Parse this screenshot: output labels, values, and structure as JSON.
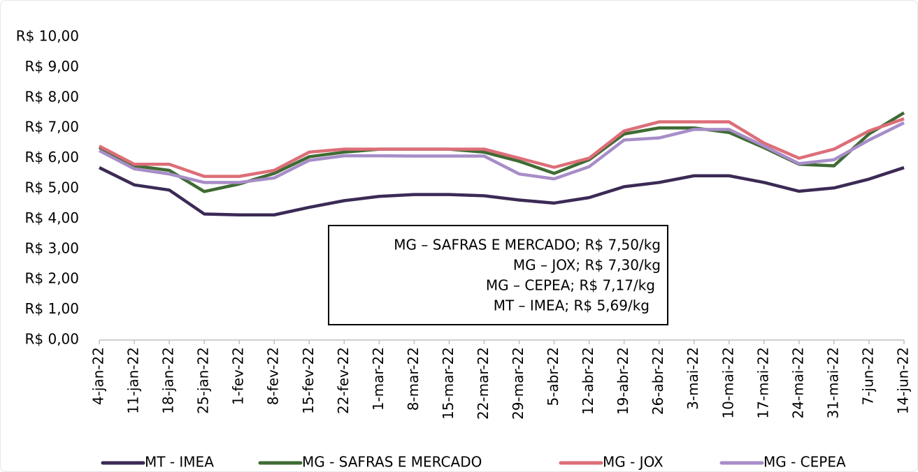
{
  "chart_data": {
    "type": "line",
    "categories": [
      "4-jan-22",
      "11-jan-22",
      "18-jan-22",
      "25-jan-22",
      "1-fev-22",
      "8-fev-22",
      "15-fev-22",
      "22-fev-22",
      "1-mar-22",
      "8-mar-22",
      "15-mar-22",
      "22-mar-22",
      "29-mar-22",
      "5-abr-22",
      "12-abr-22",
      "19-abr-22",
      "26-abr-22",
      "3-mai-22",
      "10-mai-22",
      "17-mai-22",
      "24-mai-22",
      "31-mai-22",
      "7-jun-22",
      "14-jun-22"
    ],
    "series": [
      {
        "name": "MT - IMEA",
        "color": "#3b2a55",
        "values": [
          5.69,
          5.12,
          4.95,
          4.16,
          4.13,
          4.13,
          4.38,
          4.6,
          4.74,
          4.8,
          4.8,
          4.76,
          4.62,
          4.52,
          4.7,
          5.06,
          5.2,
          5.42,
          5.42,
          5.2,
          4.91,
          5.02,
          5.31,
          5.69
        ]
      },
      {
        "name": "MG - SAFRAS E MERCADO",
        "color": "#3f6b34",
        "values": [
          6.35,
          5.75,
          5.6,
          4.9,
          5.15,
          5.5,
          6.05,
          6.2,
          6.3,
          6.3,
          6.3,
          6.2,
          5.9,
          5.5,
          5.95,
          6.8,
          7.0,
          7.0,
          6.85,
          6.35,
          5.8,
          5.75,
          6.8,
          7.5
        ]
      },
      {
        "name": "MG - JOX",
        "color": "#dc6e78",
        "values": [
          6.4,
          5.8,
          5.8,
          5.4,
          5.4,
          5.6,
          6.2,
          6.3,
          6.3,
          6.3,
          6.3,
          6.3,
          6.0,
          5.7,
          6.0,
          6.9,
          7.2,
          7.2,
          7.2,
          6.5,
          6.0,
          6.3,
          6.9,
          7.3
        ]
      },
      {
        "name": "MG - CEPEA",
        "color": "#a88dc8",
        "values": [
          6.25,
          5.65,
          5.48,
          5.2,
          5.2,
          5.35,
          5.93,
          6.08,
          6.08,
          6.07,
          6.07,
          6.07,
          5.48,
          5.32,
          5.72,
          6.6,
          6.67,
          6.95,
          6.95,
          6.4,
          5.82,
          5.95,
          6.6,
          7.17
        ]
      }
    ],
    "ylim": [
      0,
      10
    ],
    "yticks": [
      {
        "value": 0,
        "label": "R$ 0,00"
      },
      {
        "value": 1,
        "label": "R$ 1,00"
      },
      {
        "value": 2,
        "label": "R$ 2,00"
      },
      {
        "value": 3,
        "label": "R$ 3,00"
      },
      {
        "value": 4,
        "label": "R$ 4,00"
      },
      {
        "value": 5,
        "label": "R$ 5,00"
      },
      {
        "value": 6,
        "label": "R$ 6,00"
      },
      {
        "value": 7,
        "label": "R$ 7,00"
      },
      {
        "value": 8,
        "label": "R$ 8,00"
      },
      {
        "value": 9,
        "label": "R$ 9,00"
      },
      {
        "value": 10,
        "label": "R$ 10,00"
      }
    ],
    "grid": false,
    "legend": "bottom",
    "annotations": [
      "MG – SAFRAS E MERCADO; R$ 7,50/kg",
      "MG – JOX; R$ 7,30/kg",
      "MG – CEPEA; R$ 7,17/kg",
      "MT – IMEA; R$ 5,69/kg"
    ]
  }
}
